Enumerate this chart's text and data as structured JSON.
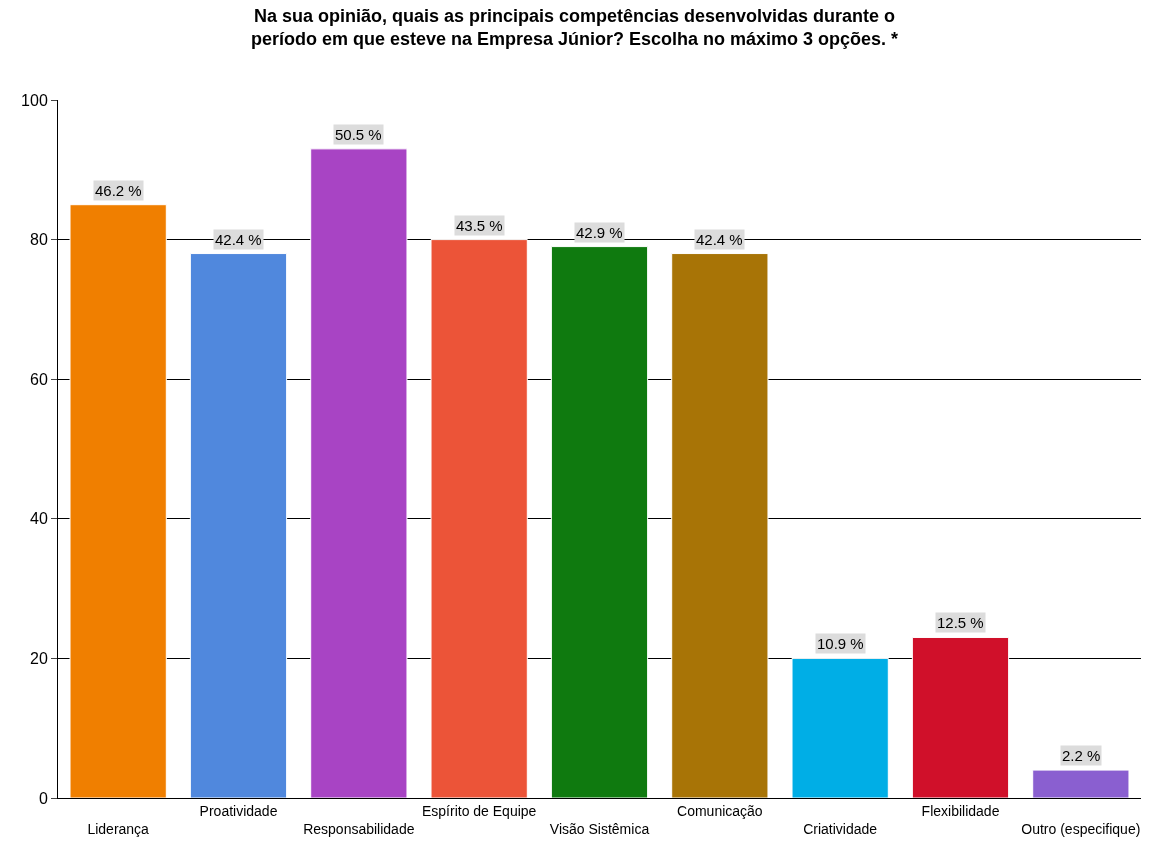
{
  "chart_data": {
    "type": "bar",
    "title": "Na sua opinião, quais as principais competências desenvolvidas durante o período em que esteve na Empresa Júnior? Escolha no máximo 3 opções. *",
    "categories": [
      "Liderança",
      "Proatividade",
      "Responsabilidade",
      "Espírito de Equipe",
      "Visão Sistêmica",
      "Comunicação",
      "Criatividade",
      "Flexibilidade",
      "Outro (especifique)"
    ],
    "values": [
      85,
      78,
      93,
      80,
      79,
      78,
      20,
      23,
      4
    ],
    "annotations": [
      {
        "text": "46.2 %",
        "x": "Liderança",
        "y": 85
      },
      {
        "text": "42.4 %",
        "x": "Proatividade",
        "y": 78
      },
      {
        "text": "50.5 %",
        "x": "Responsabilidade",
        "y": 93
      },
      {
        "text": "43.5 %",
        "x": "Espírito de Equipe",
        "y": 80
      },
      {
        "text": "42.9 %",
        "x": "Visão Sistêmica",
        "y": 79
      },
      {
        "text": "42.4 %",
        "x": "Comunicação",
        "y": 78
      },
      {
        "text": "10.9 %",
        "x": "Criatividade",
        "y": 20
      },
      {
        "text": "12.5 %",
        "x": "Flexibilidade",
        "y": 23
      },
      {
        "text": "2.2 %",
        "x": "Outro (especifique)",
        "y": 4
      }
    ],
    "colors": [
      "#f07f00",
      "#5088dd",
      "#a844c4",
      "#ec5438",
      "#0f7a0f",
      "#a87406",
      "#00aee6",
      "#d0102a",
      "#8a5fd0"
    ],
    "ylim": [
      0,
      100
    ],
    "yticks": [
      0,
      20,
      40,
      60,
      80,
      100
    ],
    "grid": "y"
  }
}
